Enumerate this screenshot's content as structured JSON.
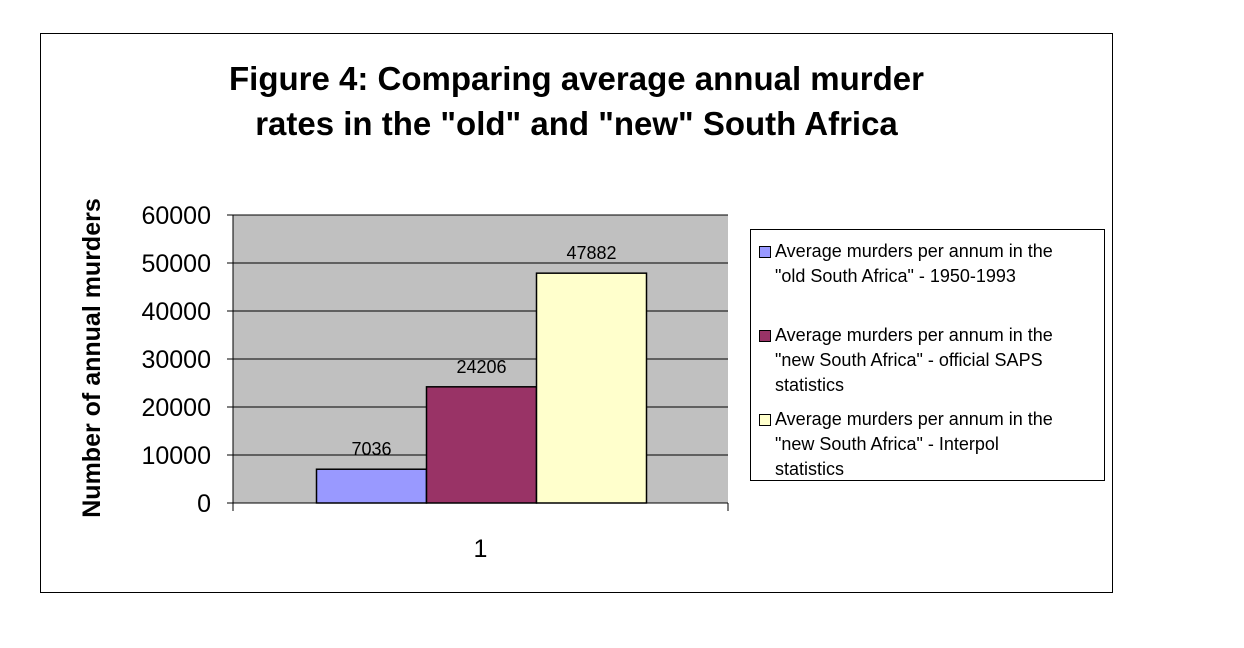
{
  "chart_data": {
    "type": "bar",
    "title_line1": "Figure 4: Comparing average annual murder",
    "title_line2": "rates in the \"old\" and \"new\" South Africa",
    "ylabel": "Number of annual murders",
    "categories": [
      "1"
    ],
    "series": [
      {
        "name": "Average murders per annum in the \"old South Africa\" - 1950-1993",
        "values": [
          7036
        ],
        "color": "#9999ff"
      },
      {
        "name": "Average murders per annum in the \"new South Africa\" - official SAPS statistics",
        "values": [
          24206
        ],
        "color": "#993366"
      },
      {
        "name": "Average murders per annum in the \"new South Africa\" - Interpol statistics",
        "values": [
          47882
        ],
        "color": "#ffffcc"
      }
    ],
    "ylim": [
      0,
      60000
    ],
    "yticks": [
      "0",
      "10000",
      "20000",
      "30000",
      "40000",
      "50000",
      "60000"
    ],
    "data_labels": [
      "7036",
      "24206",
      "47882"
    ],
    "plot_background": "#c0c0c0",
    "grid": true,
    "legend_position": "right"
  },
  "legend": {
    "items": [
      {
        "label": "Average murders per annum in the\n\"old South Africa\" - 1950-1993"
      },
      {
        "label": "Average murders per annum in the\n\"new South Africa\" - official SAPS\nstatistics"
      },
      {
        "label": "Average murders per annum in the\n\"new South Africa\" - Interpol\nstatistics"
      }
    ]
  }
}
